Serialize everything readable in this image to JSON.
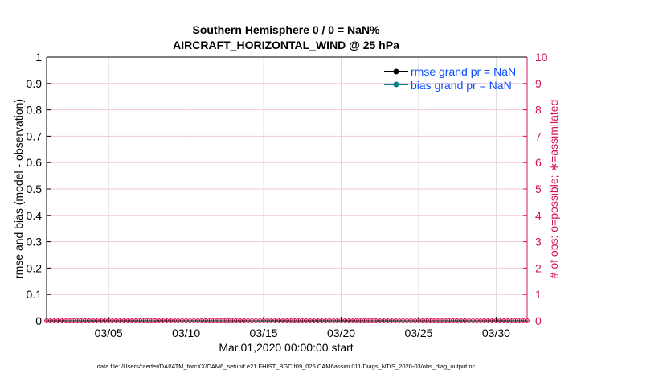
{
  "chart_data": {
    "type": "line",
    "title": [
      "Southern Hemisphere 0 / 0 = NaN%",
      "AIRCRAFT_HORIZONTAL_WIND @ 25 hPa"
    ],
    "xlabel": "Mar.01,2020 00:00:00 start",
    "ylabel": "rmse and bias (model - observation)",
    "ylabel_right": "# of obs: o=possible; ∗=assimilated",
    "xlim": [
      "2020-03-01",
      "2020-04-01"
    ],
    "ylim": [
      0,
      1
    ],
    "ylim_right": [
      0,
      10
    ],
    "x_ticks": [
      "03/05",
      "03/10",
      "03/15",
      "03/20",
      "03/25",
      "03/30"
    ],
    "y_ticks": [
      "0",
      "0.1",
      "0.2",
      "0.3",
      "0.4",
      "0.5",
      "0.6",
      "0.7",
      "0.8",
      "0.9",
      "1"
    ],
    "y_ticks_right": [
      "0",
      "1",
      "2",
      "3",
      "4",
      "5",
      "6",
      "7",
      "8",
      "9",
      "10"
    ],
    "grid": true,
    "legend_position": "top-right",
    "series": [
      {
        "name": "rmse grand pr = NaN",
        "color": "#000000",
        "values": "NaN"
      },
      {
        "name": "bias grand pr = NaN",
        "color": "#008080",
        "values": "NaN"
      },
      {
        "axis": "right",
        "marker": "o",
        "color": "#d4145a",
        "values": "0 at every time step"
      },
      {
        "axis": "right",
        "marker": "*",
        "color": "#d4145a",
        "values": "0 at every time step"
      }
    ],
    "footnote": "data file: /Users/raeder/DAI/ATM_forcXX/CAM6_setup/f.e21.FHIST_BGC.f09_025.CAM6assim.011/Diags_NTrS_2020-03/obs_diag_output.nc"
  },
  "colors": {
    "right_axis": "#d4145a",
    "legend_text": "#0a4cff",
    "grid_x": "#dcdcdc",
    "grid_y": "#f5c6d8"
  }
}
